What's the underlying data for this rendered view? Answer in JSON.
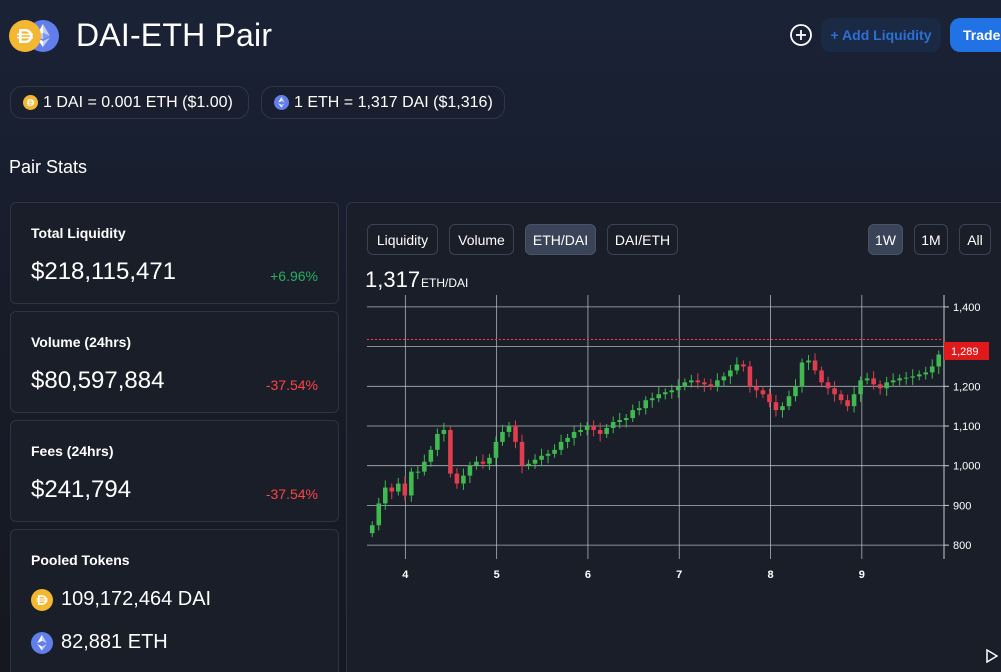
{
  "header": {
    "title": "DAI-ETH Pair",
    "add_liquidity_label": "+ Add Liquidity",
    "trade_label": "Trade"
  },
  "rates": {
    "dai_rate": "1 DAI = 0.001 ETH ($1.00)",
    "eth_rate": "1 ETH = 1,317 DAI ($1,316)"
  },
  "stats": {
    "section_title": "Pair Stats",
    "total_liquidity": {
      "label": "Total Liquidity",
      "value": "$218,115,471",
      "change": "+6.96%"
    },
    "volume": {
      "label": "Volume (24hrs)",
      "value": "$80,597,884",
      "change": "-37.54%"
    },
    "fees": {
      "label": "Fees (24hrs)",
      "value": "$241,794",
      "change": "-37.54%"
    },
    "pooled": {
      "label": "Pooled Tokens",
      "dai": "109,172,464 DAI",
      "eth": "82,881 ETH"
    }
  },
  "chart_tabs": {
    "liquidity": "Liquidity",
    "volume": "Volume",
    "ethdai": "ETH/DAI",
    "daieth": "DAI/ETH",
    "w1": "1W",
    "m1": "1M",
    "all": "All"
  },
  "chart_header": {
    "price": "1,317",
    "unit": "ETH/DAI"
  },
  "colors": {
    "up": "#26a69a",
    "down": "#ef5350",
    "up_candle": "#3fb950",
    "down_candle": "#e03e4e",
    "accent": "#2172e5",
    "price_line": "#ff3b3b"
  },
  "chart_data": {
    "type": "candlestick",
    "x_ticks": [
      "4",
      "5",
      "6",
      "7",
      "8",
      "9"
    ],
    "y_ticks": [
      "800",
      "900",
      "1,000",
      "1,100",
      "1,200",
      "1,300",
      "1,400"
    ],
    "y_tick_values": [
      800,
      900,
      1000,
      1100,
      1200,
      1300,
      1400
    ],
    "ylim": [
      765,
      1430
    ],
    "xlim": [
      3.58,
      9.9
    ],
    "current_price_label": "1,289",
    "current_price_value": 1289,
    "dotted_line_value": 1318,
    "close": [
      850,
      905,
      945,
      935,
      955,
      925,
      985,
      985,
      1010,
      1040,
      1080,
      1090,
      980,
      955,
      975,
      1000,
      1010,
      1005,
      1020,
      1060,
      1085,
      1100,
      1060,
      1000,
      1005,
      1015,
      1025,
      1030,
      1040,
      1060,
      1070,
      1085,
      1090,
      1100,
      1090,
      1080,
      1095,
      1110,
      1115,
      1120,
      1140,
      1145,
      1165,
      1170,
      1180,
      1185,
      1190,
      1200,
      1210,
      1215,
      1210,
      1205,
      1200,
      1215,
      1225,
      1240,
      1255,
      1250,
      1200,
      1190,
      1180,
      1160,
      1140,
      1150,
      1175,
      1200,
      1260,
      1265,
      1240,
      1210,
      1195,
      1180,
      1165,
      1150,
      1180,
      1215,
      1220,
      1205,
      1195,
      1210,
      1215,
      1220,
      1222,
      1225,
      1230,
      1235,
      1250,
      1280
    ]
  }
}
